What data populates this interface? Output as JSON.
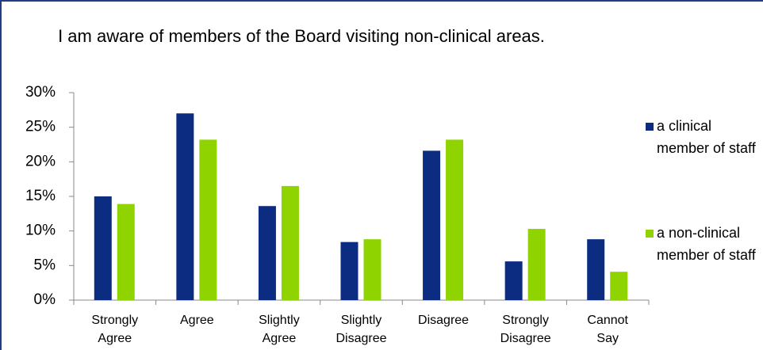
{
  "chart_data": {
    "type": "bar",
    "title": "I am aware of members of the Board visiting non-clinical areas.",
    "categories": [
      "Strongly Agree",
      "Agree",
      "Slightly Agree",
      "Slightly Disagree",
      "Disagree",
      "Strongly Disagree",
      "Cannot Say"
    ],
    "series": [
      {
        "name": "a clinical member of staff",
        "color": "#0b2c80",
        "values": [
          15,
          27,
          13.6,
          8.4,
          21.6,
          5.6,
          8.8
        ]
      },
      {
        "name": "a non-clinical member of staff",
        "color": "#8fd400",
        "values": [
          13.9,
          23.2,
          16.5,
          8.8,
          23.2,
          10.3,
          4.1
        ]
      }
    ],
    "ylim": [
      0,
      30
    ],
    "yticks": [
      {
        "value": 0,
        "label": "0%"
      },
      {
        "value": 5,
        "label": "5%"
      },
      {
        "value": 10,
        "label": "10%"
      },
      {
        "value": 15,
        "label": "15%"
      },
      {
        "value": 20,
        "label": "20%"
      },
      {
        "value": 25,
        "label": "25%"
      },
      {
        "value": 30,
        "label": "30%"
      }
    ],
    "legend": "right"
  }
}
